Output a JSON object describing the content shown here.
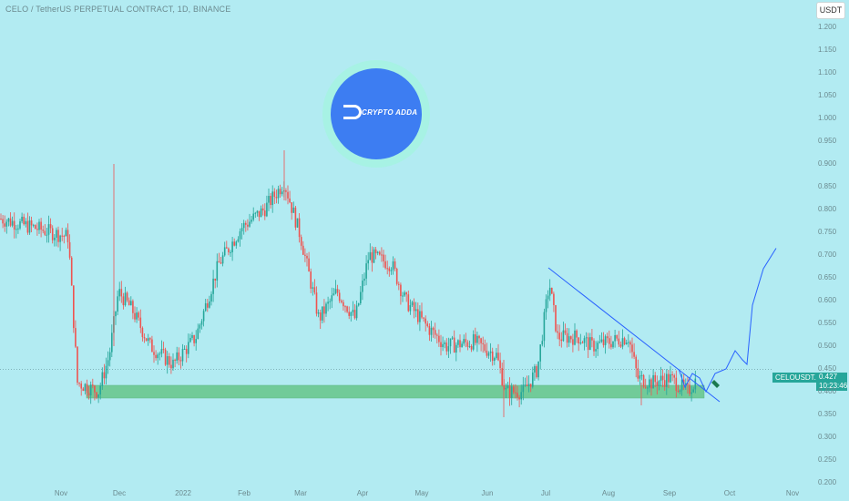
{
  "header": {
    "title": "CELO / TetherUS PERPETUAL CONTRACT, 1D, BINANCE"
  },
  "currency_button": "USDT",
  "symbol_label": "CELOUSDT.P",
  "price_label": {
    "price": "0.427",
    "countdown": "10:23:46"
  },
  "logo": {
    "text": "CRYPTO ADDA"
  },
  "colors": {
    "background": "#b2ebf2",
    "up": "#26a69a",
    "down": "#ef5350",
    "support_zone": "#66c68a",
    "trendline": "#2962ff"
  },
  "chart_data": {
    "type": "candlestick",
    "ylim": [
      0.2,
      1.2
    ],
    "y_ticks": [
      "1.200",
      "1.150",
      "1.100",
      "1.050",
      "1.000",
      "0.950",
      "0.900",
      "0.850",
      "0.800",
      "0.750",
      "0.700",
      "0.650",
      "0.600",
      "0.550",
      "0.500",
      "0.450",
      "0.400",
      "0.350",
      "0.300",
      "0.250",
      "0.200"
    ],
    "x_ticks": [
      "Nov",
      "Dec",
      "2022",
      "Feb",
      "Mar",
      "Apr",
      "May",
      "Jun",
      "Jul",
      "Aug",
      "Sep",
      "Oct",
      "Nov"
    ],
    "current_price": 0.427,
    "support_zone": [
      0.386,
      0.414
    ],
    "trendline": [
      {
        "x": "Jul",
        "y": 0.672
      },
      {
        "x": "Sep",
        "y": 0.378
      }
    ],
    "close_path": [
      {
        "x": "Oct",
        "y": 0.78
      },
      {
        "x": "Nov",
        "y": 0.74
      },
      {
        "x": "Nov",
        "y": 0.42
      },
      {
        "x": "Dec",
        "y": 0.47
      },
      {
        "x": "Dec",
        "y": 0.61
      },
      {
        "x": "Dec",
        "y": 0.5
      },
      {
        "x": "2022",
        "y": 0.48
      },
      {
        "x": "2022",
        "y": 0.55
      },
      {
        "x": "Feb",
        "y": 0.74
      },
      {
        "x": "Feb",
        "y": 0.86
      },
      {
        "x": "Mar",
        "y": 0.76
      },
      {
        "x": "Mar",
        "y": 0.56
      },
      {
        "x": "Mar",
        "y": 0.64
      },
      {
        "x": "Apr",
        "y": 0.7
      },
      {
        "x": "Apr",
        "y": 0.62
      },
      {
        "x": "May",
        "y": 0.58
      },
      {
        "x": "May",
        "y": 0.5
      },
      {
        "x": "Jun",
        "y": 0.52
      },
      {
        "x": "Jun",
        "y": 0.4
      },
      {
        "x": "Jul",
        "y": 0.42
      },
      {
        "x": "Jul",
        "y": 0.6
      },
      {
        "x": "Jul",
        "y": 0.5
      },
      {
        "x": "Aug",
        "y": 0.52
      },
      {
        "x": "Aug",
        "y": 0.42
      },
      {
        "x": "Sep",
        "y": 0.43
      },
      {
        "x": "Sep",
        "y": 0.427
      }
    ]
  }
}
